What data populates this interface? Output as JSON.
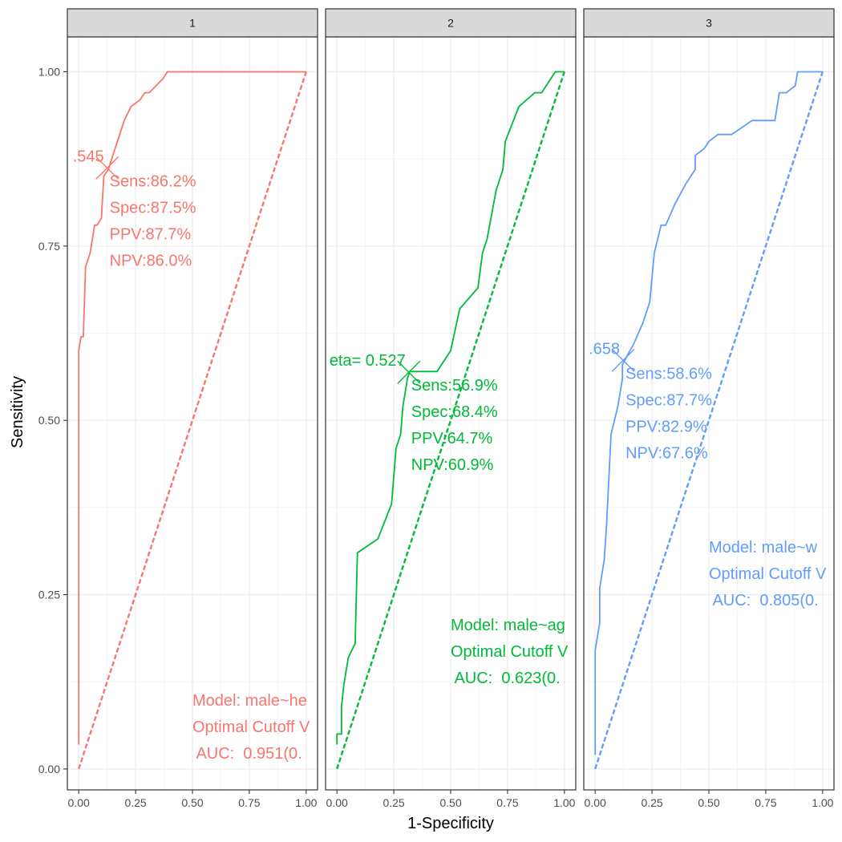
{
  "chart_data": {
    "type": "line",
    "xlabel": "1-Specificity",
    "ylabel": "Sensitivity",
    "xlim": [
      -0.05,
      1.05
    ],
    "ylim": [
      -0.03,
      1.05
    ],
    "x_ticks": [
      "0.00",
      "0.25",
      "0.50",
      "0.75",
      "1.00"
    ],
    "y_ticks": [
      "0.00",
      "0.25",
      "0.50",
      "0.75",
      "1.00"
    ],
    "x_tick_values": [
      0,
      0.25,
      0.5,
      0.75,
      1
    ],
    "y_tick_values": [
      0,
      0.25,
      0.5,
      0.75,
      1
    ],
    "grid": true,
    "facets": [
      {
        "label": "1",
        "color": "#F8766D",
        "roc": [
          [
            0.0,
            0.035
          ],
          [
            0.0,
            0.6
          ],
          [
            0.01,
            0.62
          ],
          [
            0.02,
            0.62
          ],
          [
            0.03,
            0.72
          ],
          [
            0.05,
            0.74
          ],
          [
            0.07,
            0.78
          ],
          [
            0.08,
            0.78
          ],
          [
            0.1,
            0.79
          ],
          [
            0.11,
            0.85
          ],
          [
            0.13,
            0.86
          ],
          [
            0.2,
            0.93
          ],
          [
            0.23,
            0.95
          ],
          [
            0.27,
            0.96
          ],
          [
            0.29,
            0.97
          ],
          [
            0.31,
            0.97
          ],
          [
            0.34,
            0.98
          ],
          [
            0.37,
            0.99
          ],
          [
            0.39,
            1.0
          ],
          [
            0.5,
            1.0
          ],
          [
            0.75,
            1.0
          ],
          [
            1.0,
            1.0
          ]
        ],
        "cutoff_point": [
          0.125,
          0.862
        ],
        "cutoff_label": ".545",
        "stats": [
          "Sens:86.2%",
          "Spec:87.5%",
          "PPV:87.7%",
          "NPV:86.0%"
        ],
        "model_lines": [
          "Model: male~he",
          "Optimal Cutoff V",
          " AUC:  0.951(0."
        ]
      },
      {
        "label": "2",
        "color": "#00BA38",
        "roc": [
          [
            0.0,
            0.035
          ],
          [
            0.0,
            0.05
          ],
          [
            0.02,
            0.05
          ],
          [
            0.02,
            0.09
          ],
          [
            0.03,
            0.12
          ],
          [
            0.05,
            0.16
          ],
          [
            0.08,
            0.18
          ],
          [
            0.09,
            0.31
          ],
          [
            0.18,
            0.33
          ],
          [
            0.24,
            0.38
          ],
          [
            0.26,
            0.46
          ],
          [
            0.28,
            0.48
          ],
          [
            0.29,
            0.52
          ],
          [
            0.31,
            0.56
          ],
          [
            0.32,
            0.57
          ],
          [
            0.44,
            0.57
          ],
          [
            0.5,
            0.6
          ],
          [
            0.54,
            0.66
          ],
          [
            0.62,
            0.69
          ],
          [
            0.64,
            0.74
          ],
          [
            0.66,
            0.76
          ],
          [
            0.7,
            0.83
          ],
          [
            0.73,
            0.86
          ],
          [
            0.74,
            0.9
          ],
          [
            0.8,
            0.95
          ],
          [
            0.87,
            0.97
          ],
          [
            0.9,
            0.97
          ],
          [
            0.94,
            0.99
          ],
          [
            0.96,
            1.0
          ],
          [
            1.0,
            1.0
          ]
        ],
        "cutoff_point": [
          0.316,
          0.569
        ],
        "cutoff_label": "eta= 0.527",
        "stats": [
          "Sens:56.9%",
          "Spec:68.4%",
          "PPV:64.7%",
          "NPV:60.9%"
        ],
        "model_lines": [
          "Model: male~ag",
          "Optimal Cutoff V",
          " AUC:  0.623(0."
        ]
      },
      {
        "label": "3",
        "color": "#619CFF",
        "roc": [
          [
            0.0,
            0.02
          ],
          [
            0.0,
            0.17
          ],
          [
            0.02,
            0.21
          ],
          [
            0.02,
            0.26
          ],
          [
            0.04,
            0.3
          ],
          [
            0.05,
            0.35
          ],
          [
            0.07,
            0.48
          ],
          [
            0.1,
            0.52
          ],
          [
            0.12,
            0.56
          ],
          [
            0.12,
            0.58
          ],
          [
            0.17,
            0.61
          ],
          [
            0.21,
            0.64
          ],
          [
            0.24,
            0.67
          ],
          [
            0.26,
            0.74
          ],
          [
            0.29,
            0.78
          ],
          [
            0.31,
            0.78
          ],
          [
            0.35,
            0.81
          ],
          [
            0.4,
            0.84
          ],
          [
            0.44,
            0.86
          ],
          [
            0.44,
            0.88
          ],
          [
            0.48,
            0.89
          ],
          [
            0.5,
            0.9
          ],
          [
            0.54,
            0.91
          ],
          [
            0.6,
            0.91
          ],
          [
            0.69,
            0.93
          ],
          [
            0.79,
            0.93
          ],
          [
            0.81,
            0.97
          ],
          [
            0.84,
            0.97
          ],
          [
            0.88,
            0.98
          ],
          [
            0.89,
            1.0
          ],
          [
            0.95,
            1.0
          ],
          [
            1.0,
            1.0
          ]
        ],
        "cutoff_point": [
          0.123,
          0.586
        ],
        "cutoff_label": ".658",
        "stats": [
          "Sens:58.6%",
          "Spec:87.7%",
          "PPV:82.9%",
          "NPV:67.6%"
        ],
        "model_lines": [
          "Model: male~w",
          "Optimal Cutoff V",
          " AUC:  0.805(0."
        ]
      }
    ]
  }
}
